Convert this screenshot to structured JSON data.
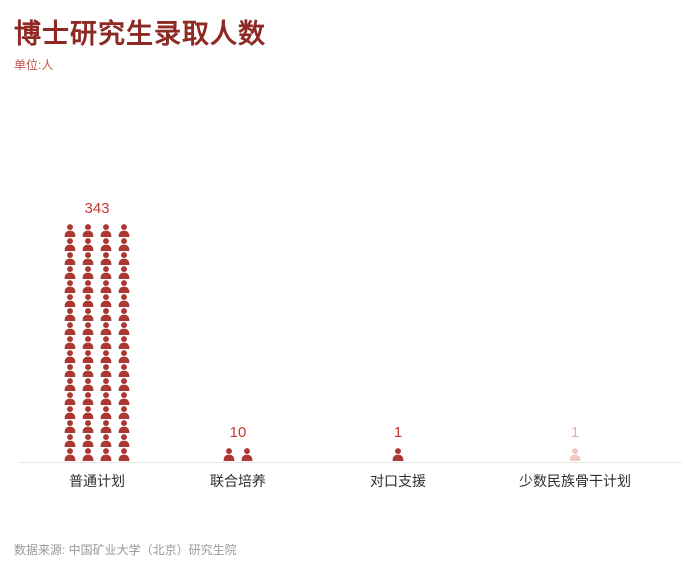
{
  "chart_data": {
    "type": "bar",
    "variant": "pictogram",
    "title": "博士研究生录取人数",
    "unit_label": "单位:人",
    "categories": [
      "普通计划",
      "联合培养",
      "对口支援",
      "少数民族骨干计划"
    ],
    "values": [
      343,
      10,
      1,
      1
    ],
    "value_labels": [
      "343",
      "10",
      "1",
      "1"
    ],
    "icons": {
      "symbol": "person-icon",
      "persons_per_icon": 5,
      "counts": [
        68,
        2,
        1,
        1
      ],
      "columns": [
        4,
        2,
        1,
        1
      ]
    },
    "series_colors": [
      "#ab3832",
      "#ab3832",
      "#ab3832",
      "#f0cac2"
    ],
    "value_label_colors": [
      "#c43a30",
      "#c43a30",
      "#c43a30",
      "#e7aea4"
    ],
    "axis_line_color": "#e8e8e8",
    "legend_position": "none",
    "grid": false,
    "source": "数据来源: 中国矿业大学（北京）研究生院"
  },
  "style": {
    "title_color": "#8e2a24",
    "unit_color": "#c4574e",
    "category_color": "#2f2f2f",
    "source_color": "#999999",
    "background": "#ffffff"
  }
}
